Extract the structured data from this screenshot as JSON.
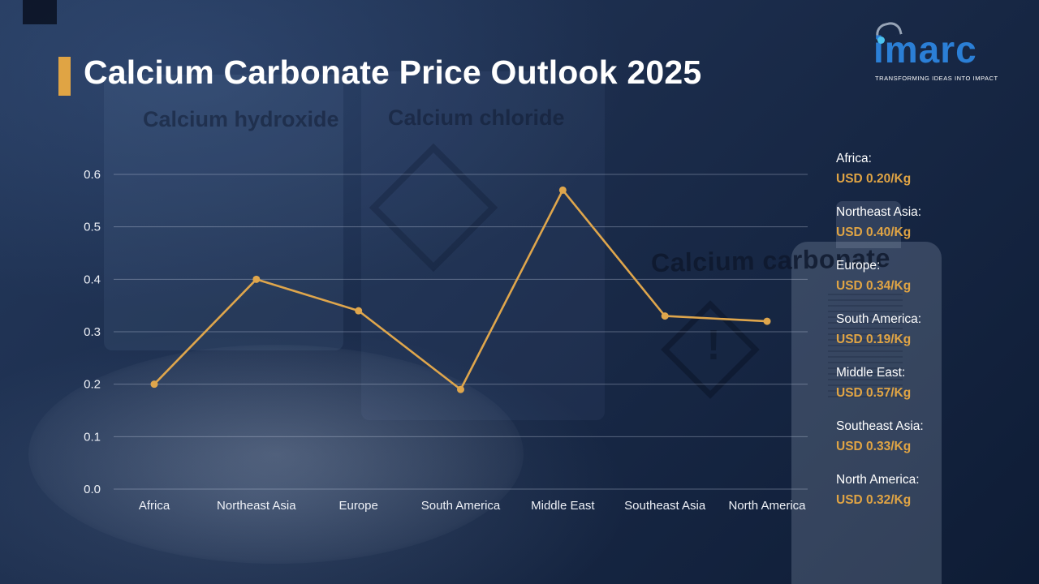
{
  "theme": {
    "accent_gold": "#e0a444",
    "logo_blue": "#2b7fd6",
    "background_navy": "#16263f",
    "line_gold": "#dfa64c",
    "text_white": "#ffffff"
  },
  "header": {
    "title": "Calcium Carbonate Price Outlook 2025"
  },
  "logo": {
    "name": "imarc",
    "tagline": "TRANSFORMING IDEAS INTO IMPACT"
  },
  "background": {
    "bottle_label_1": "Calcium hydroxide",
    "bottle_label_2": "Calcium chloride",
    "bottle_label_3": "Calcium carbonate",
    "warning_glyph": "!"
  },
  "chart_data": {
    "type": "line",
    "title": "Calcium Carbonate Price Outlook 2025",
    "categories": [
      "Africa",
      "Northeast Asia",
      "Europe",
      "South America",
      "Middle East",
      "Southeast Asia",
      "North America"
    ],
    "values": [
      0.2,
      0.4,
      0.34,
      0.19,
      0.57,
      0.33,
      0.32
    ],
    "unit": "USD/Kg",
    "xlabel": "",
    "ylabel": "",
    "ylim": [
      0.0,
      0.6
    ],
    "ytick_step": 0.1,
    "ytick_labels": [
      "0.0",
      "0.1",
      "0.2",
      "0.3",
      "0.4",
      "0.5",
      "0.6"
    ],
    "grid": true,
    "line_color": "#dfa64c",
    "legend_position": "right"
  },
  "legend": {
    "items": [
      {
        "label": "Africa:",
        "value": "USD 0.20/Kg"
      },
      {
        "label": "Northeast Asia:",
        "value": "USD 0.40/Kg"
      },
      {
        "label": "Europe:",
        "value": "USD 0.34/Kg"
      },
      {
        "label": "South America:",
        "value": "USD 0.19/Kg"
      },
      {
        "label": "Middle East:",
        "value": "USD 0.57/Kg"
      },
      {
        "label": "Southeast Asia:",
        "value": "USD 0.33/Kg"
      },
      {
        "label": "North America:",
        "value": "USD 0.32/Kg"
      }
    ]
  }
}
